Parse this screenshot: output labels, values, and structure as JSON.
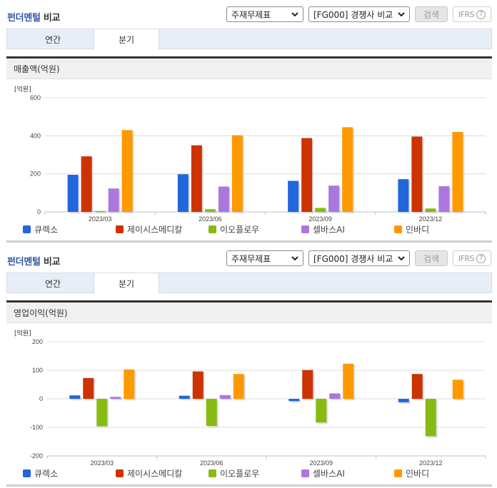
{
  "sections": [
    {
      "title_part1": "펀더멘털",
      "title_part2": " 비교",
      "select_statement": "주재무제표",
      "select_compare": "[FG000] 경쟁사 비교",
      "search_label": "검색",
      "ifrs_label": "IFRS",
      "help_label": "?",
      "tabs": [
        {
          "label": "연간"
        },
        {
          "label": "분기"
        }
      ],
      "active_tab": "분기",
      "chart_title": "매출액(억원)",
      "unit": "[억원]"
    },
    {
      "title_part1": "펀더멘털",
      "title_part2": " 비교",
      "select_statement": "주재무제표",
      "select_compare": "[FG000] 경쟁사 비교",
      "search_label": "검색",
      "ifrs_label": "IFRS",
      "help_label": "?",
      "tabs": [
        {
          "label": "연간"
        },
        {
          "label": "분기"
        }
      ],
      "active_tab": "분기",
      "chart_title": "영업이익(억원)",
      "unit": "[억원]"
    }
  ],
  "legend": [
    {
      "name": "큐렉소",
      "color": "#2266dd"
    },
    {
      "name": "제이시스메디칼",
      "color": "#cc3300"
    },
    {
      "name": "이오플로우",
      "color": "#88bb11"
    },
    {
      "name": "셀바스AI",
      "color": "#aa77dd"
    },
    {
      "name": "인바디",
      "color": "#ff9900"
    }
  ],
  "chart_data": [
    {
      "type": "bar",
      "title": "매출액(억원)",
      "xlabel": "",
      "ylabel": "[억원]",
      "ylim": [
        0,
        600
      ],
      "yticks": [
        0,
        200,
        400,
        600
      ],
      "grid": true,
      "legend_position": "bottom",
      "categories": [
        "2023/03",
        "2023/06",
        "2023/09",
        "2023/12"
      ],
      "series": [
        {
          "name": "큐렉소",
          "color": "#2266dd",
          "values": [
            195,
            198,
            163,
            172
          ]
        },
        {
          "name": "제이시스메디칼",
          "color": "#cc3300",
          "values": [
            292,
            350,
            388,
            396
          ]
        },
        {
          "name": "이오플로우",
          "color": "#88bb11",
          "values": [
            5,
            14,
            21,
            18
          ]
        },
        {
          "name": "셀바스AI",
          "color": "#aa77dd",
          "values": [
            123,
            133,
            138,
            135
          ]
        },
        {
          "name": "인바디",
          "color": "#ff9900",
          "values": [
            430,
            403,
            445,
            420
          ]
        }
      ]
    },
    {
      "type": "bar",
      "title": "영업이익(억원)",
      "xlabel": "",
      "ylabel": "[억원]",
      "ylim": [
        -200,
        200
      ],
      "yticks": [
        -200,
        -100,
        0,
        100,
        200
      ],
      "grid": true,
      "legend_position": "bottom",
      "categories": [
        "2023/03",
        "2023/06",
        "2023/09",
        "2023/12"
      ],
      "series": [
        {
          "name": "큐렉소",
          "color": "#2266dd",
          "values": [
            12,
            11,
            -8,
            -12
          ]
        },
        {
          "name": "제이시스메디칼",
          "color": "#cc3300",
          "values": [
            73,
            96,
            101,
            87
          ]
        },
        {
          "name": "이오플로우",
          "color": "#88bb11",
          "values": [
            -96,
            -95,
            -83,
            -131
          ]
        },
        {
          "name": "셀바스AI",
          "color": "#aa77dd",
          "values": [
            7,
            13,
            19,
            0
          ]
        },
        {
          "name": "인바디",
          "color": "#ff9900",
          "values": [
            103,
            87,
            123,
            67
          ]
        }
      ]
    }
  ]
}
